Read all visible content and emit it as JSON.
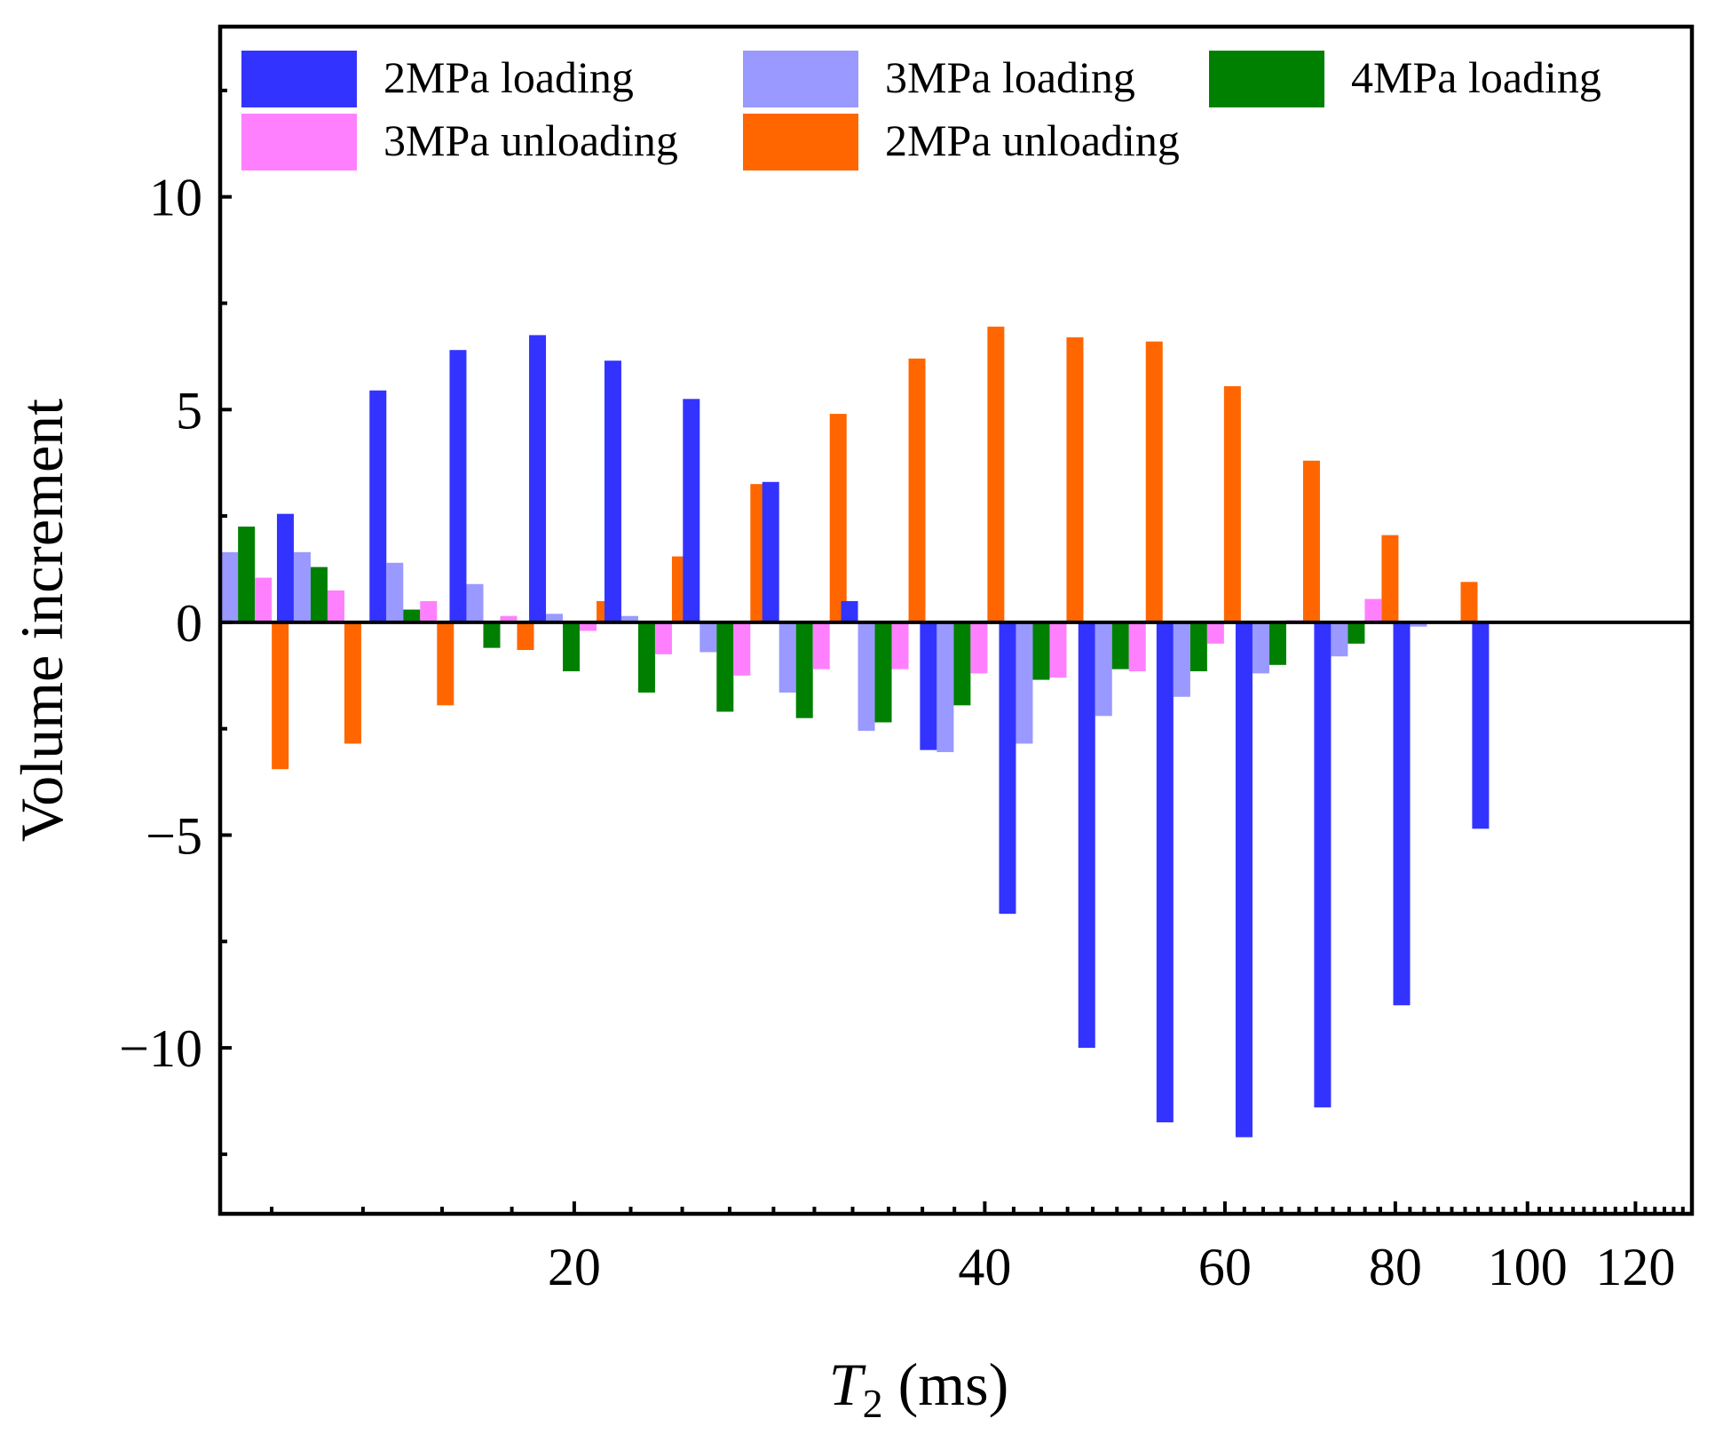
{
  "chart_data": {
    "type": "bar",
    "xscale": "log",
    "title": "",
    "xlabel": {
      "var": "T",
      "sub": "2",
      "unit": " (ms)"
    },
    "ylabel": "Volume increment",
    "ylim": [
      -13.9,
      14
    ],
    "xlim": [
      11.0,
      132.0
    ],
    "yticks": [
      {
        "value": 10,
        "label": "10"
      },
      {
        "value": 5,
        "label": "5"
      },
      {
        "value": 0,
        "label": "0"
      },
      {
        "value": -5,
        "label": "−5"
      },
      {
        "value": -10,
        "label": "−10"
      }
    ],
    "yminor_ticks": [
      12.5,
      7.5,
      2.5,
      -2.5,
      -7.5,
      -12.5
    ],
    "xticks": [
      {
        "value": 20,
        "label": "20"
      },
      {
        "value": 40,
        "label": "40"
      },
      {
        "value": 60,
        "label": "60"
      },
      {
        "value": 80,
        "label": "80"
      },
      {
        "value": 100,
        "label": "100"
      },
      {
        "value": 120,
        "label": "120"
      }
    ],
    "xminor_ticks": [
      12,
      14,
      16,
      18,
      22,
      24,
      26,
      28,
      30,
      32,
      34,
      36,
      38,
      42,
      44,
      46,
      48,
      50,
      52,
      54,
      56,
      58,
      62,
      64,
      66,
      68,
      70,
      72,
      74,
      76,
      78,
      82,
      84,
      86,
      88,
      90,
      92,
      94,
      96,
      98,
      102,
      104,
      106,
      108,
      110,
      112,
      114,
      116,
      118,
      122,
      124,
      126,
      128,
      130
    ],
    "categories": [
      11.5,
      13.0,
      15.2,
      17.4,
      19.9,
      22.6,
      25.8,
      29.5,
      33.7,
      38.5,
      44.0,
      50.3,
      57.4,
      65.6,
      74.9,
      85.6,
      97.8,
      111.7,
      127.5
    ],
    "series": [
      {
        "name": "2MPa loading",
        "color": "#3333ff",
        "values": [
          null,
          2.55,
          5.45,
          6.4,
          6.75,
          6.15,
          5.25,
          3.3,
          0.5,
          -3.0,
          -6.85,
          -10.0,
          -11.75,
          -12.1,
          -11.4,
          -9.0,
          -4.85,
          null,
          null
        ]
      },
      {
        "name": "3MPa loading",
        "color": "#9999ff",
        "values": [
          1.65,
          1.65,
          1.4,
          0.9,
          0.2,
          0.15,
          -0.7,
          -1.65,
          -2.55,
          -3.05,
          -2.85,
          -2.2,
          -1.75,
          -1.2,
          -0.8,
          -0.1,
          null,
          null,
          null
        ]
      },
      {
        "name": "4MPa loading",
        "color": "#008000",
        "values": [
          2.25,
          1.3,
          0.3,
          -0.6,
          -1.15,
          -1.65,
          -2.1,
          -2.25,
          -2.35,
          -1.95,
          -1.35,
          -1.1,
          -1.15,
          -1.0,
          -0.5,
          null,
          null,
          null,
          null
        ]
      },
      {
        "name": "3MPa unloading",
        "color": "#ff80ff",
        "values": [
          1.05,
          0.75,
          0.5,
          0.15,
          -0.2,
          -0.75,
          -1.25,
          -1.1,
          -1.1,
          -1.2,
          -1.3,
          -1.15,
          -0.5,
          0.05,
          0.55,
          null,
          null,
          null,
          null
        ]
      },
      {
        "name": "2MPa unloading",
        "color": "#ff6600",
        "values": [
          -3.45,
          -2.85,
          -1.95,
          -0.65,
          0.5,
          1.55,
          3.25,
          4.9,
          6.2,
          6.95,
          6.7,
          6.6,
          5.55,
          3.8,
          2.05,
          0.95,
          null,
          null,
          null
        ]
      }
    ],
    "legend": {
      "placement": "top-left",
      "columns": 3,
      "order": [
        "2MPa loading",
        "3MPa loading",
        "4MPa loading",
        "3MPa unloading",
        "2MPa unloading"
      ]
    }
  }
}
